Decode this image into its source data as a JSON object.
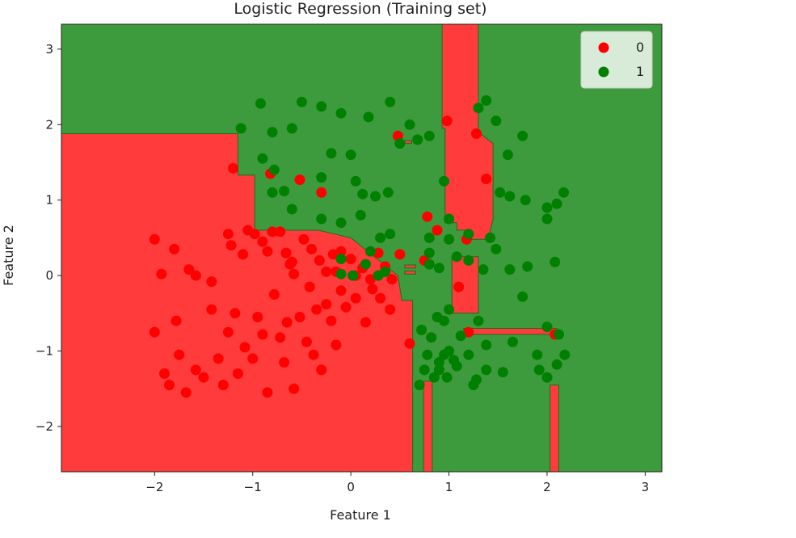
{
  "chart_data": {
    "type": "scatter",
    "title": "Logistic Regression (Training set)",
    "xlabel": "Feature 1",
    "ylabel": "Feature 2",
    "xlim": [
      -2.95,
      3.17
    ],
    "ylim": [
      -2.6,
      3.33
    ],
    "xticks": [
      -2,
      -1,
      0,
      1,
      2,
      3
    ],
    "yticks": [
      -2,
      -1,
      0,
      1,
      2,
      3
    ],
    "grid": false,
    "legend_position": "top-right",
    "region_colors": {
      "0": "#ff3b3b",
      "1": "#3d9b3d"
    },
    "regions": {
      "0": [
        [
          [
            -2.95,
            -2.6
          ],
          [
            0.63,
            -2.6
          ],
          [
            0.63,
            -0.33
          ],
          [
            0.52,
            -0.33
          ],
          [
            0.48,
            0.0
          ],
          [
            0.0,
            0.5
          ],
          [
            -0.33,
            0.6
          ],
          [
            -0.98,
            0.6
          ],
          [
            -0.98,
            1.33
          ],
          [
            -1.15,
            1.33
          ],
          [
            -1.15,
            1.88
          ],
          [
            -2.95,
            1.88
          ]
        ],
        [
          [
            0.74,
            -2.6
          ],
          [
            0.83,
            -2.6
          ],
          [
            0.83,
            -1.4
          ],
          [
            0.74,
            -1.4
          ]
        ],
        [
          [
            0.93,
            3.33
          ],
          [
            1.3,
            3.33
          ],
          [
            1.3,
            1.9
          ],
          [
            1.45,
            1.75
          ],
          [
            1.45,
            0.75
          ],
          [
            1.4,
            0.48
          ],
          [
            1.2,
            0.48
          ],
          [
            1.2,
            0.6
          ],
          [
            1.08,
            0.6
          ],
          [
            1.08,
            0.7
          ],
          [
            0.96,
            0.7
          ],
          [
            0.96,
            1.95
          ],
          [
            0.93,
            1.95
          ]
        ],
        [
          [
            1.03,
            -0.5
          ],
          [
            1.3,
            -0.5
          ],
          [
            1.3,
            0.25
          ],
          [
            1.03,
            0.25
          ]
        ],
        [
          [
            1.15,
            -0.78
          ],
          [
            2.1,
            -0.78
          ],
          [
            2.1,
            -0.7
          ],
          [
            1.15,
            -0.7
          ]
        ],
        [
          [
            2.03,
            -2.6
          ],
          [
            2.12,
            -2.6
          ],
          [
            2.12,
            -1.45
          ],
          [
            2.03,
            -1.45
          ]
        ],
        [
          [
            0.55,
            0.02
          ],
          [
            0.66,
            0.02
          ],
          [
            0.66,
            0.06
          ],
          [
            0.55,
            0.06
          ]
        ],
        [
          [
            0.55,
            0.1
          ],
          [
            0.66,
            0.1
          ],
          [
            0.66,
            0.14
          ],
          [
            0.55,
            0.14
          ]
        ],
        [
          [
            0.55,
            1.75
          ],
          [
            0.62,
            1.75
          ],
          [
            0.62,
            1.79
          ],
          [
            0.55,
            1.79
          ]
        ]
      ]
    },
    "series": [
      {
        "name": "0",
        "color": "#ff0000",
        "points": [
          [
            -2.0,
            0.48
          ],
          [
            -1.93,
            0.02
          ],
          [
            -1.8,
            0.35
          ],
          [
            -1.65,
            0.08
          ],
          [
            -1.58,
            0.0
          ],
          [
            -1.42,
            -0.08
          ],
          [
            -1.25,
            0.55
          ],
          [
            -1.22,
            0.4
          ],
          [
            -1.1,
            0.28
          ],
          [
            -1.05,
            0.6
          ],
          [
            -0.98,
            0.55
          ],
          [
            -0.9,
            0.45
          ],
          [
            -0.85,
            0.32
          ],
          [
            -0.8,
            0.58
          ],
          [
            -0.72,
            0.58
          ],
          [
            -0.66,
            0.3
          ],
          [
            -0.62,
            0.15
          ],
          [
            -0.58,
            0.02
          ],
          [
            -0.48,
            0.48
          ],
          [
            -0.4,
            0.35
          ],
          [
            -0.32,
            0.2
          ],
          [
            -0.25,
            0.05
          ],
          [
            -0.18,
            0.28
          ],
          [
            -0.1,
            0.32
          ],
          [
            0.0,
            0.22
          ],
          [
            0.05,
            0.0
          ],
          [
            0.12,
            0.1
          ],
          [
            0.2,
            -0.05
          ],
          [
            0.28,
            0.3
          ],
          [
            0.35,
            0.12
          ],
          [
            0.42,
            -0.05
          ],
          [
            0.5,
            0.28
          ],
          [
            -2.0,
            -0.75
          ],
          [
            -1.9,
            -1.3
          ],
          [
            -1.85,
            -1.45
          ],
          [
            -1.78,
            -0.6
          ],
          [
            -1.75,
            -1.05
          ],
          [
            -1.68,
            -1.55
          ],
          [
            -1.58,
            -1.25
          ],
          [
            -1.5,
            -1.35
          ],
          [
            -1.42,
            -0.45
          ],
          [
            -1.35,
            -1.1
          ],
          [
            -1.3,
            -1.45
          ],
          [
            -1.25,
            -0.75
          ],
          [
            -1.18,
            -0.5
          ],
          [
            -1.15,
            -1.3
          ],
          [
            -1.08,
            -0.95
          ],
          [
            -1.0,
            -1.1
          ],
          [
            -0.95,
            -0.55
          ],
          [
            -0.9,
            -0.78
          ],
          [
            -0.85,
            -1.55
          ],
          [
            -0.78,
            -0.25
          ],
          [
            -0.72,
            -0.82
          ],
          [
            -0.68,
            -1.15
          ],
          [
            -0.58,
            -1.5
          ],
          [
            -0.52,
            -0.55
          ],
          [
            -0.45,
            -0.88
          ],
          [
            -0.38,
            -1.05
          ],
          [
            -0.3,
            -1.25
          ],
          [
            -0.25,
            -0.38
          ],
          [
            -0.2,
            -0.6
          ],
          [
            -0.15,
            -0.92
          ],
          [
            -0.1,
            -0.2
          ],
          [
            -0.05,
            -0.42
          ],
          [
            0.05,
            -0.3
          ],
          [
            0.15,
            -0.62
          ],
          [
            0.22,
            -0.18
          ],
          [
            0.3,
            -0.3
          ],
          [
            0.4,
            -0.45
          ],
          [
            0.6,
            -0.9
          ],
          [
            -1.2,
            1.42
          ],
          [
            -0.82,
            1.35
          ],
          [
            -0.52,
            1.27
          ],
          [
            -0.3,
            1.1
          ],
          [
            0.48,
            1.85
          ],
          [
            0.98,
            2.05
          ],
          [
            1.28,
            1.88
          ],
          [
            1.38,
            1.28
          ],
          [
            0.78,
            0.78
          ],
          [
            1.1,
            -0.15
          ],
          [
            1.2,
            -0.75
          ],
          [
            2.08,
            -0.78
          ],
          [
            0.75,
            0.2
          ],
          [
            0.88,
            0.6
          ],
          [
            1.18,
            0.48
          ],
          [
            -0.6,
            0.18
          ],
          [
            -0.65,
            -0.62
          ],
          [
            -0.35,
            -0.45
          ],
          [
            -0.42,
            -0.15
          ],
          [
            -0.15,
            0.05
          ]
        ]
      },
      {
        "name": "1",
        "color": "#008000",
        "points": [
          [
            -1.12,
            1.95
          ],
          [
            -0.9,
            1.55
          ],
          [
            -0.78,
            1.4
          ],
          [
            -0.68,
            1.12
          ],
          [
            -0.92,
            2.28
          ],
          [
            -0.5,
            2.3
          ],
          [
            -0.3,
            2.24
          ],
          [
            -0.1,
            2.15
          ],
          [
            0.18,
            2.1
          ],
          [
            0.4,
            2.3
          ],
          [
            0.6,
            2.0
          ],
          [
            -0.6,
            1.95
          ],
          [
            -0.8,
            1.9
          ],
          [
            -0.2,
            1.62
          ],
          [
            -0.3,
            1.3
          ],
          [
            0.0,
            1.6
          ],
          [
            0.05,
            1.25
          ],
          [
            0.12,
            1.08
          ],
          [
            0.25,
            1.05
          ],
          [
            0.38,
            1.1
          ],
          [
            0.5,
            1.75
          ],
          [
            0.68,
            1.8
          ],
          [
            0.8,
            1.85
          ],
          [
            -0.8,
            1.1
          ],
          [
            -0.6,
            0.88
          ],
          [
            -0.3,
            0.75
          ],
          [
            -0.1,
            0.7
          ],
          [
            0.1,
            0.8
          ],
          [
            0.3,
            0.5
          ],
          [
            0.4,
            0.55
          ],
          [
            0.8,
            0.5
          ],
          [
            0.95,
            1.25
          ],
          [
            1.0,
            0.75
          ],
          [
            1.2,
            0.55
          ],
          [
            1.3,
            2.22
          ],
          [
            1.38,
            2.32
          ],
          [
            1.48,
            2.05
          ],
          [
            1.6,
            1.6
          ],
          [
            1.75,
            1.85
          ],
          [
            1.52,
            1.1
          ],
          [
            1.62,
            1.05
          ],
          [
            1.78,
            1.0
          ],
          [
            2.0,
            0.9
          ],
          [
            2.0,
            0.75
          ],
          [
            2.1,
            0.95
          ],
          [
            2.17,
            1.1
          ],
          [
            1.48,
            0.35
          ],
          [
            1.62,
            0.08
          ],
          [
            1.8,
            0.12
          ],
          [
            2.08,
            0.18
          ],
          [
            1.75,
            -0.28
          ],
          [
            2.0,
            -0.68
          ],
          [
            2.12,
            -0.78
          ],
          [
            2.18,
            -1.05
          ],
          [
            1.9,
            -1.05
          ],
          [
            1.92,
            -1.25
          ],
          [
            2.0,
            -1.35
          ],
          [
            2.1,
            -1.18
          ],
          [
            1.65,
            -0.88
          ],
          [
            1.38,
            -0.92
          ],
          [
            1.28,
            -1.38
          ],
          [
            1.25,
            -1.45
          ],
          [
            1.2,
            -1.05
          ],
          [
            1.05,
            -1.12
          ],
          [
            0.95,
            -1.05
          ],
          [
            0.9,
            -1.15
          ],
          [
            0.85,
            -1.35
          ],
          [
            0.75,
            -1.25
          ],
          [
            0.7,
            -1.45
          ],
          [
            0.82,
            -0.82
          ],
          [
            0.72,
            -0.72
          ],
          [
            0.88,
            -0.55
          ],
          [
            0.98,
            -1.35
          ],
          [
            1.08,
            -1.2
          ],
          [
            1.38,
            -1.25
          ],
          [
            1.55,
            -1.28
          ],
          [
            1.08,
            0.25
          ],
          [
            1.2,
            0.2
          ],
          [
            1.35,
            0.08
          ],
          [
            0.8,
            0.15
          ],
          [
            0.9,
            0.1
          ],
          [
            -0.1,
            0.22
          ],
          [
            0.15,
            0.15
          ],
          [
            0.28,
            0.0
          ],
          [
            0.35,
            0.05
          ],
          [
            0.8,
            0.3
          ],
          [
            1.0,
            0.48
          ],
          [
            1.42,
            0.5
          ],
          [
            1.3,
            -0.6
          ],
          [
            1.0,
            -0.45
          ],
          [
            0.95,
            -0.6
          ],
          [
            1.12,
            -0.8
          ],
          [
            1.0,
            -1.0
          ],
          [
            0.78,
            -1.05
          ],
          [
            0.9,
            -1.25
          ],
          [
            0.2,
            0.32
          ],
          [
            -0.1,
            0.02
          ],
          [
            0.02,
            0.0
          ]
        ]
      }
    ]
  }
}
